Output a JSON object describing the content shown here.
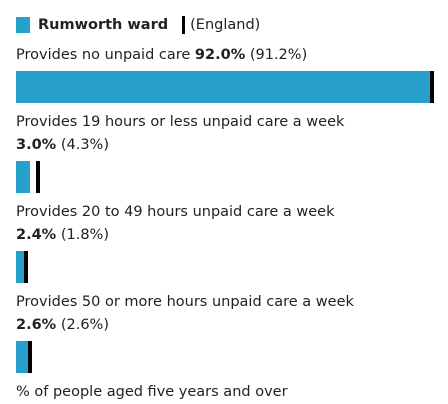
{
  "chart_data": {
    "type": "bar",
    "orientation": "horizontal",
    "categories": [
      "Provides no unpaid care",
      "Provides 19 hours or less unpaid care a week",
      "Provides 20 to 49 hours unpaid care a week",
      "Provides 50 or more hours unpaid care a week"
    ],
    "series": [
      {
        "name": "Rumworth ward",
        "color": "#27a0cc",
        "values": [
          92.0,
          3.0,
          2.4,
          2.6
        ],
        "value_labels": [
          "92.0%",
          "3.0%",
          "2.4%",
          "2.6%"
        ]
      },
      {
        "name": "(England)",
        "color": "#000000",
        "values": [
          91.2,
          4.3,
          1.8,
          2.6
        ],
        "value_labels": [
          "(91.2%)",
          "(4.3%)",
          "(1.8%)",
          "(2.6%)"
        ]
      }
    ],
    "xlim": [
      0,
      100
    ],
    "x_label": "% of people aged five years and over"
  }
}
